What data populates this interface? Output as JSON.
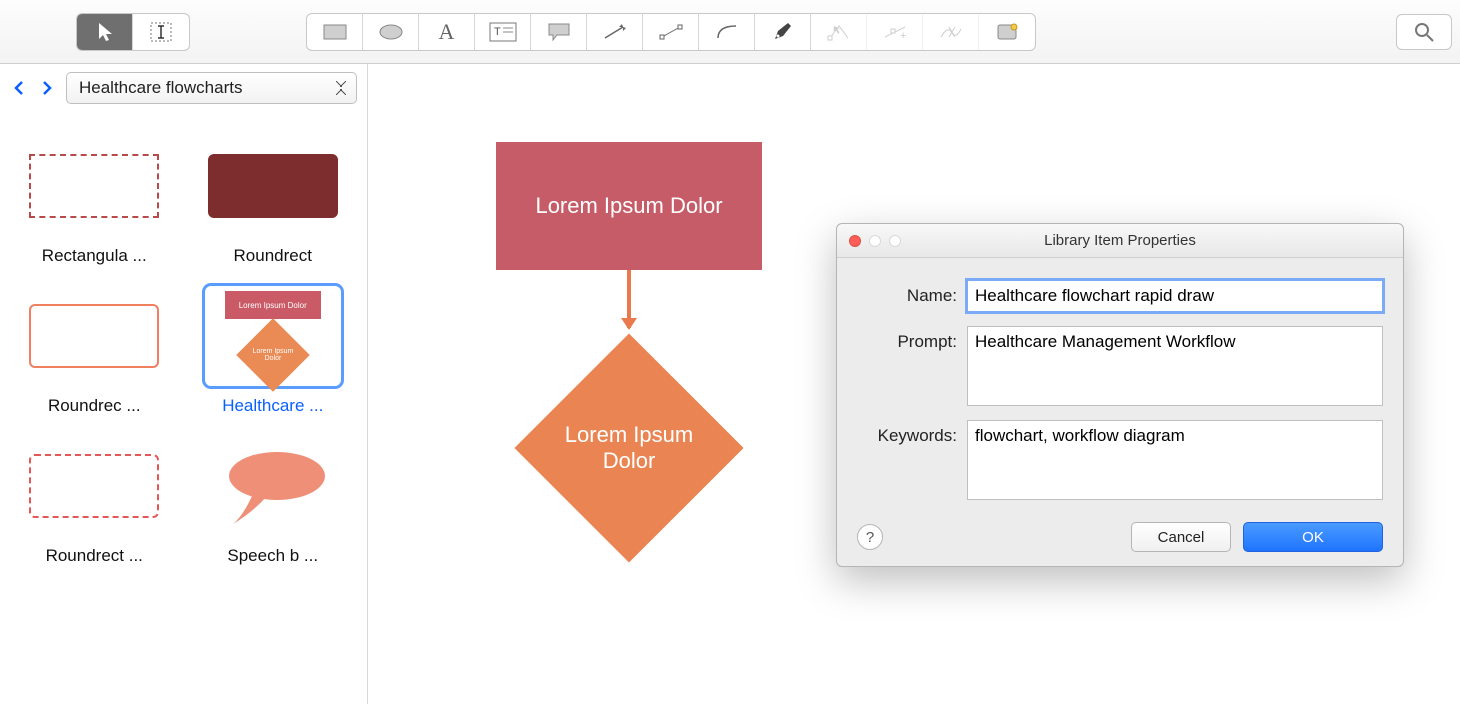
{
  "toolbar": {
    "tools": [
      {
        "name": "pointer",
        "active": true
      },
      {
        "name": "text-cursor",
        "active": false
      },
      {
        "name": "rectangle",
        "active": false
      },
      {
        "name": "ellipse",
        "active": false
      },
      {
        "name": "text",
        "active": false
      },
      {
        "name": "text-frame",
        "active": false
      },
      {
        "name": "callout",
        "active": false
      },
      {
        "name": "arrow",
        "active": false
      },
      {
        "name": "connector",
        "active": false
      },
      {
        "name": "arc",
        "active": false
      },
      {
        "name": "pen",
        "active": false
      },
      {
        "name": "edit-points",
        "active": false,
        "ghost": true
      },
      {
        "name": "add-point",
        "active": false,
        "ghost": true
      },
      {
        "name": "break-point",
        "active": false,
        "ghost": true
      },
      {
        "name": "object",
        "active": false
      }
    ],
    "search_tooltip": "Search"
  },
  "sidebar": {
    "library_name": "Healthcare flowcharts",
    "shapes": [
      {
        "label": "Rectangula ...",
        "type": "dashed-rect",
        "selected": false
      },
      {
        "label": "Roundrect",
        "type": "roundrect-fill",
        "selected": false
      },
      {
        "label": "Roundrec ...",
        "type": "roundrec-outline",
        "selected": false
      },
      {
        "label": "Healthcare  ...",
        "type": "flow-mini",
        "selected": true
      },
      {
        "label": "Roundrect ...",
        "type": "roundrect-dashed",
        "selected": false
      },
      {
        "label": "Speech b ...",
        "type": "speech",
        "selected": false
      }
    ],
    "mini_flow": {
      "top_text": "Lorem Ipsum Dolor",
      "bottom_text": "Lorem Ipsum Dolor"
    }
  },
  "canvas": {
    "rect_text": "Lorem Ipsum Dolor",
    "diamond_text": "Lorem Ipsum Dolor",
    "rect_color": "#c75c69",
    "diamond_color": "#ea8553",
    "arrow_color": "#ea7a4d"
  },
  "dialog": {
    "title": "Library Item Properties",
    "fields": {
      "name_label": "Name:",
      "name_value": "Healthcare flowchart rapid draw",
      "prompt_label": "Prompt:",
      "prompt_value": "Healthcare Management Workflow",
      "keywords_label": "Keywords:",
      "keywords_value": "flowchart, workflow diagram"
    },
    "cancel": "Cancel",
    "ok": "OK",
    "help": "?"
  }
}
